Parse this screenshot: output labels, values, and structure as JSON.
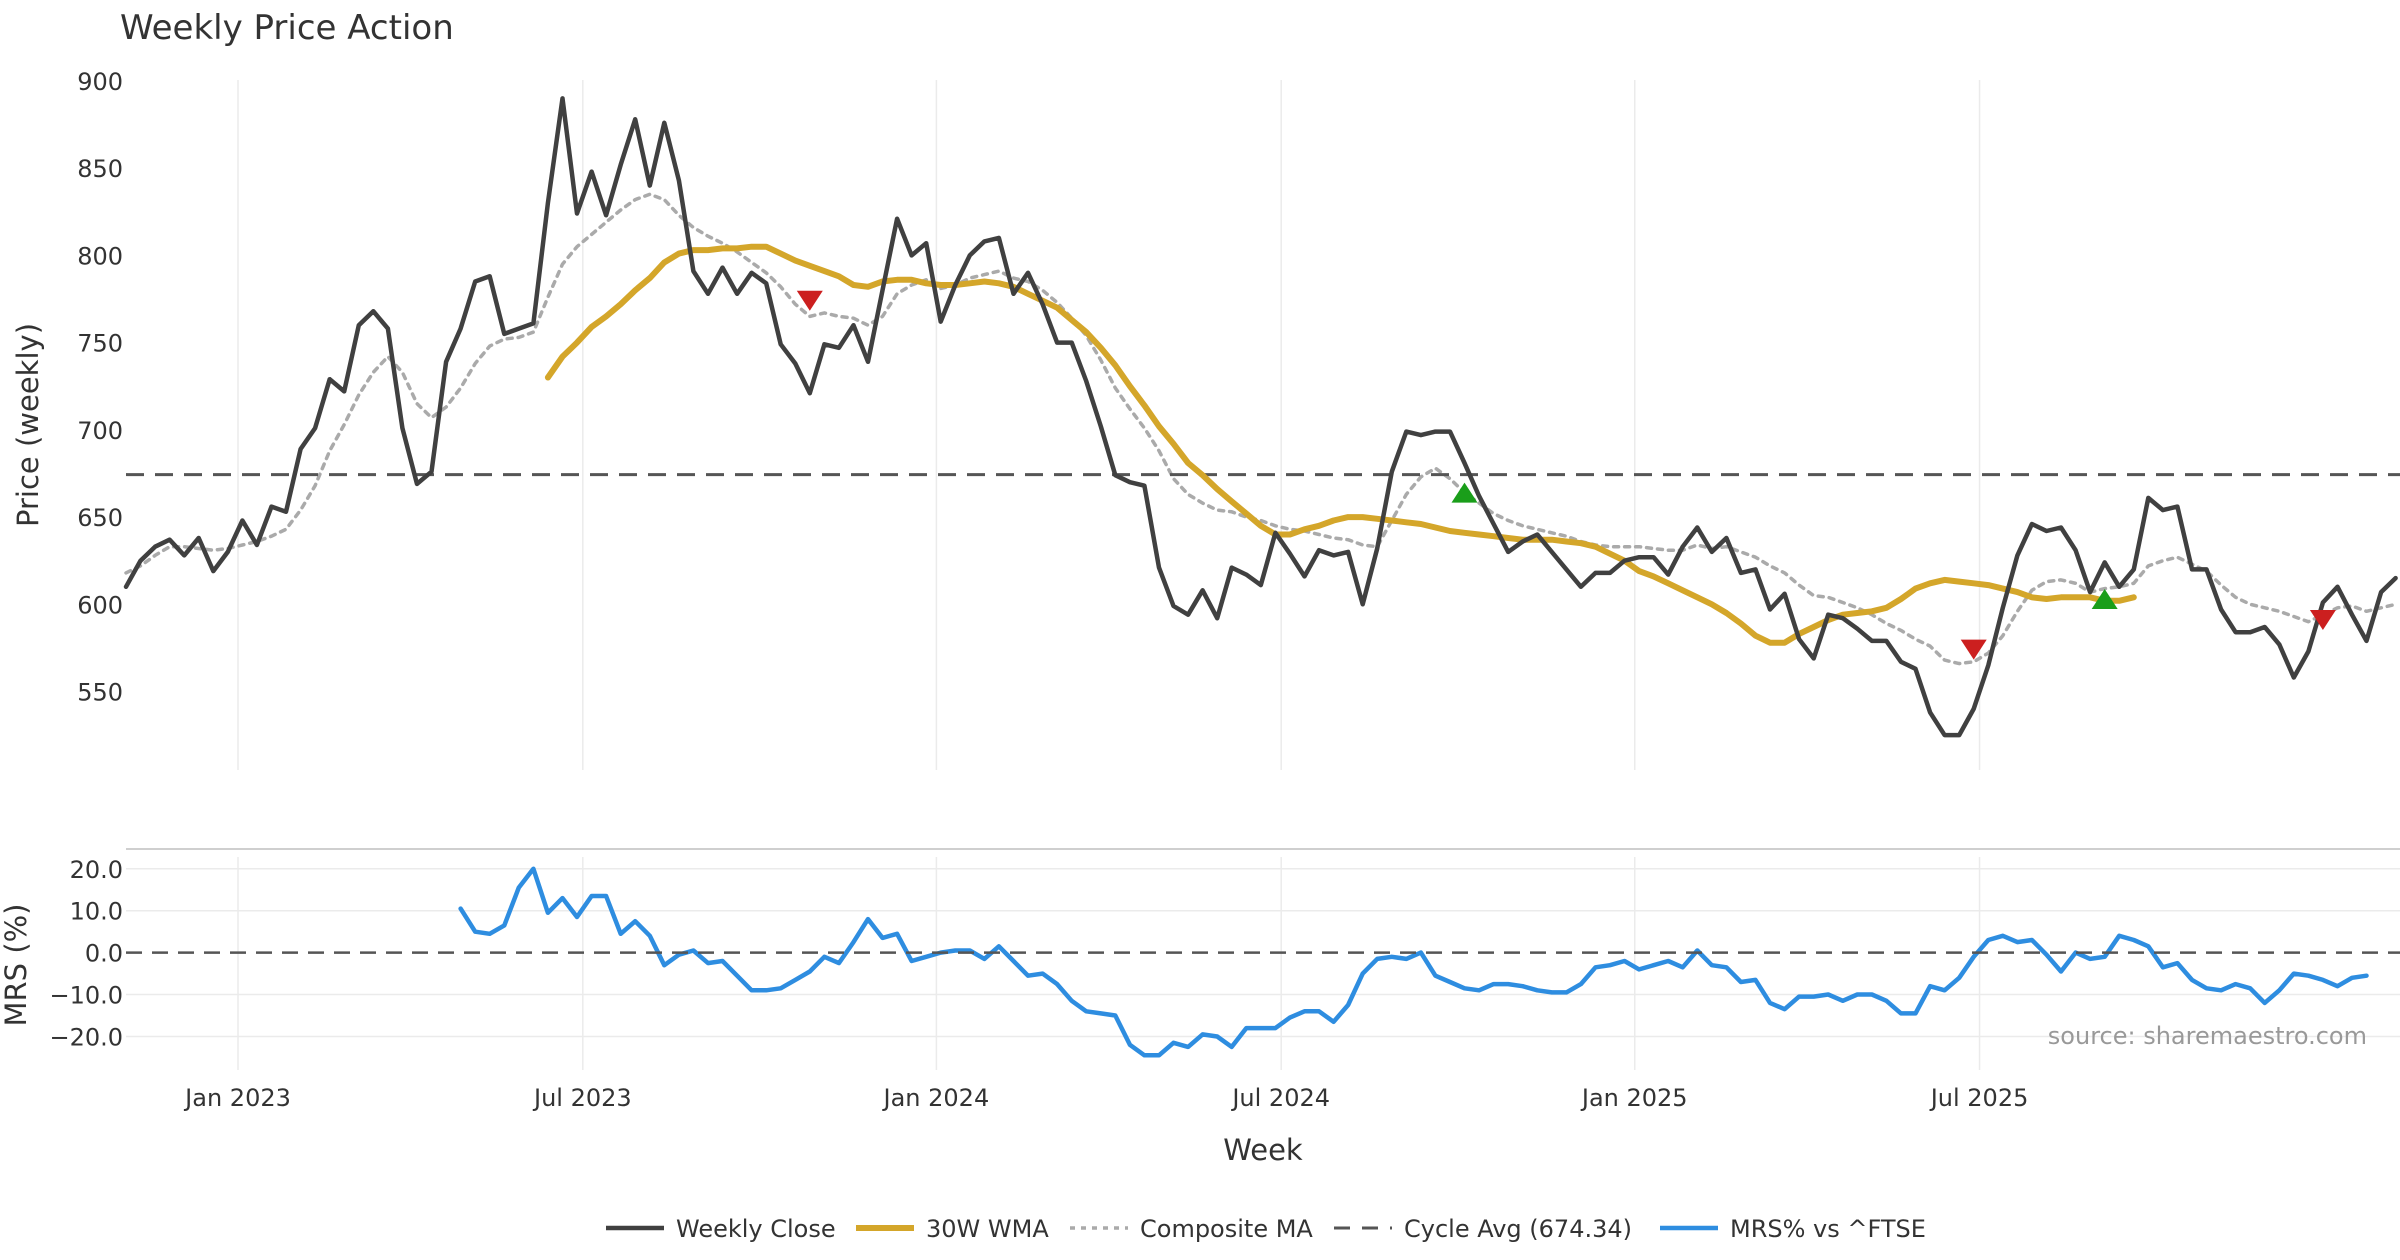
{
  "chart_data": [
    {
      "type": "line",
      "title": "Weekly Price Action",
      "ylabel": "Price (weekly)",
      "ylim": [
        505,
        912
      ],
      "yticks": [
        "900",
        "850",
        "800",
        "750",
        "700",
        "650",
        "600",
        "550"
      ],
      "x_weeks_range": [
        0,
        153
      ],
      "series": [
        {
          "name": "Weekly Close",
          "color": "#404040",
          "start_week": 0,
          "values": [
            610,
            625,
            633,
            637,
            628,
            638,
            619,
            630,
            648,
            634,
            656,
            653,
            689,
            701,
            729,
            722,
            760,
            768,
            758,
            701,
            669,
            676,
            739,
            758,
            785,
            788,
            755,
            758,
            761,
            830,
            890,
            824,
            848,
            823,
            852,
            878,
            840,
            876,
            843,
            791,
            778,
            793,
            778,
            790,
            784,
            749,
            738,
            721,
            749,
            747,
            760,
            739,
            780,
            821,
            800,
            807,
            762,
            783,
            800,
            808,
            810,
            778,
            790,
            772,
            750,
            750,
            728,
            702,
            674,
            670,
            668,
            621,
            599,
            594,
            608,
            592,
            621,
            617,
            611,
            641,
            629,
            616,
            631,
            628,
            630,
            600,
            632,
            676,
            699,
            697,
            699,
            699,
            681,
            662,
            646,
            630,
            636,
            640,
            630,
            620,
            610,
            618,
            618,
            625,
            627,
            627,
            617,
            633,
            644,
            630,
            638,
            618,
            620,
            597,
            606,
            580,
            569,
            594,
            592,
            586,
            579,
            579,
            567,
            563,
            538,
            525,
            525,
            540,
            565,
            598,
            628,
            646,
            642,
            644,
            631,
            607,
            624,
            610,
            620,
            661,
            654,
            656,
            620,
            620,
            597,
            584,
            584,
            587,
            577,
            558,
            573,
            601,
            610,
            594,
            579,
            607,
            615
          ]
        },
        {
          "name": "30W WMA",
          "color": "#d4a62a",
          "start_week": 29,
          "values": [
            730,
            742,
            750,
            759,
            765,
            772,
            780,
            787,
            796,
            801,
            803,
            803,
            804,
            804,
            805,
            805,
            801,
            797,
            794,
            791,
            788,
            783,
            782,
            785,
            786,
            786,
            784,
            783,
            783,
            784,
            785,
            784,
            782,
            778,
            774,
            770,
            763,
            756,
            747,
            737,
            725,
            714,
            702,
            692,
            681,
            674,
            666,
            659,
            652,
            645,
            640,
            640,
            643,
            645,
            648,
            650,
            650,
            649,
            648,
            647,
            646,
            644,
            642,
            641,
            640,
            639,
            638,
            637,
            637,
            637,
            636,
            635,
            633,
            629,
            625,
            619,
            616,
            612,
            608,
            604,
            600,
            595,
            589,
            582,
            578,
            578,
            583,
            587,
            591,
            594,
            595,
            596,
            598,
            603,
            609,
            612,
            614,
            613,
            612,
            611,
            609,
            607,
            604,
            603,
            604,
            604,
            604,
            602,
            602,
            604
          ]
        },
        {
          "name": "Composite MA",
          "color": "#aaaaaa",
          "start_week": 0,
          "values": [
            618,
            622,
            628,
            633,
            633,
            632,
            631,
            632,
            634,
            636,
            639,
            643,
            654,
            668,
            688,
            703,
            720,
            733,
            742,
            733,
            715,
            707,
            713,
            724,
            738,
            748,
            752,
            753,
            756,
            776,
            795,
            805,
            812,
            819,
            826,
            832,
            835,
            832,
            823,
            816,
            811,
            807,
            802,
            796,
            790,
            782,
            772,
            765,
            767,
            765,
            764,
            760,
            765,
            778,
            783,
            786,
            781,
            783,
            787,
            789,
            791,
            787,
            785,
            780,
            773,
            764,
            754,
            740,
            724,
            712,
            701,
            688,
            672,
            663,
            658,
            654,
            653,
            650,
            648,
            645,
            643,
            642,
            640,
            638,
            637,
            634,
            633,
            648,
            663,
            673,
            678,
            672,
            664,
            658,
            652,
            648,
            645,
            643,
            641,
            639,
            636,
            634,
            633,
            633,
            633,
            632,
            631,
            631,
            634,
            632,
            633,
            630,
            627,
            622,
            618,
            611,
            605,
            604,
            601,
            598,
            594,
            589,
            585,
            580,
            576,
            568,
            566,
            567,
            572,
            582,
            596,
            608,
            613,
            614,
            612,
            607,
            609,
            610,
            612,
            622,
            625,
            627,
            623,
            619,
            611,
            604,
            600,
            598,
            596,
            593,
            590,
            594,
            598,
            599,
            596,
            598,
            600
          ]
        },
        {
          "name": "Cycle Avg (674.34)",
          "color": "#555555",
          "constant": 674.34
        }
      ],
      "signals": [
        {
          "type": "sell",
          "week": 47,
          "value": 774,
          "color": "#cc1f1f"
        },
        {
          "type": "buy",
          "week": 92,
          "value": 664,
          "color": "#1a9e1a"
        },
        {
          "type": "sell",
          "week": 127,
          "value": 574,
          "color": "#cc1f1f"
        },
        {
          "type": "buy",
          "week": 136,
          "value": 603,
          "color": "#1a9e1a"
        },
        {
          "type": "sell",
          "week": 151,
          "value": 591,
          "color": "#cc1f1f"
        }
      ]
    },
    {
      "type": "line",
      "ylabel": "MRS (%)",
      "xlabel": "Week",
      "ylim": [
        -28,
        24
      ],
      "yticks": [
        "20.0",
        "10.0",
        "0.0",
        "−10.0",
        "−20.0"
      ],
      "x_weeks_range": [
        0,
        153
      ],
      "xticks": [
        "Jan 2023",
        "Jul 2023",
        "Jan 2024",
        "Jul 2024",
        "Jan 2025",
        "Jul 2025"
      ],
      "xtick_weeks": [
        7.7,
        31.4,
        55.7,
        79.4,
        103.7,
        127.4
      ],
      "series": [
        {
          "name": "MRS% vs ^FTSE",
          "color": "#2e8de0",
          "start_week": 23,
          "values": [
            10.5,
            5,
            4.5,
            6.5,
            15.5,
            20,
            9.5,
            13,
            8.5,
            13.5,
            13.5,
            4.5,
            7.5,
            4,
            -3,
            -0.5,
            0.5,
            -2.5,
            -2,
            -5.5,
            -9,
            -9,
            -8.5,
            -6.5,
            -4.5,
            -1,
            -2.5,
            2.5,
            8,
            3.5,
            4.5,
            -2,
            -1,
            0,
            0.5,
            0.5,
            -1.5,
            1.5,
            -2,
            -5.5,
            -5,
            -7.5,
            -11.5,
            -14,
            -14.5,
            -15,
            -22,
            -24.5,
            -24.5,
            -21.5,
            -22.5,
            -19.5,
            -20,
            -22.5,
            -18,
            -18,
            -18,
            -15.5,
            -14,
            -14,
            -16.5,
            -12.5,
            -5,
            -1.5,
            -1,
            -1.5,
            0,
            -5.5,
            -7,
            -8.5,
            -9,
            -7.5,
            -7.5,
            -8,
            -9,
            -9.5,
            -9.5,
            -7.5,
            -3.5,
            -3,
            -2,
            -4,
            -3,
            -2,
            -3.5,
            0.5,
            -3,
            -3.5,
            -7,
            -6.5,
            -12,
            -13.5,
            -10.5,
            -10.5,
            -10,
            -11.5,
            -10,
            -10,
            -11.5,
            -14.5,
            -14.5,
            -8,
            -9,
            -6,
            -1,
            3,
            4,
            2.5,
            3,
            -0.5,
            -4.5,
            0,
            -1.5,
            -1,
            4,
            3,
            1.5,
            -3.5,
            -2.5,
            -6.5,
            -8.5,
            -9,
            -7.5,
            -8.5,
            -12,
            -9,
            -5,
            -5.5,
            -6.5,
            -8,
            -6,
            -5.5
          ]
        },
        {
          "name": "zero line",
          "color": "#555555",
          "constant": 0
        }
      ]
    }
  ],
  "source_text": "source: sharemaestro.com",
  "legend": [
    {
      "label": "Weekly Close",
      "style": "solid",
      "color": "#404040"
    },
    {
      "label": "30W WMA",
      "style": "solid-thick",
      "color": "#d4a62a"
    },
    {
      "label": "Composite MA",
      "style": "dotted",
      "color": "#aaaaaa"
    },
    {
      "label": "Cycle Avg (674.34)",
      "style": "dashed",
      "color": "#555555"
    },
    {
      "label": "MRS% vs ^FTSE",
      "style": "solid",
      "color": "#2e8de0"
    }
  ]
}
